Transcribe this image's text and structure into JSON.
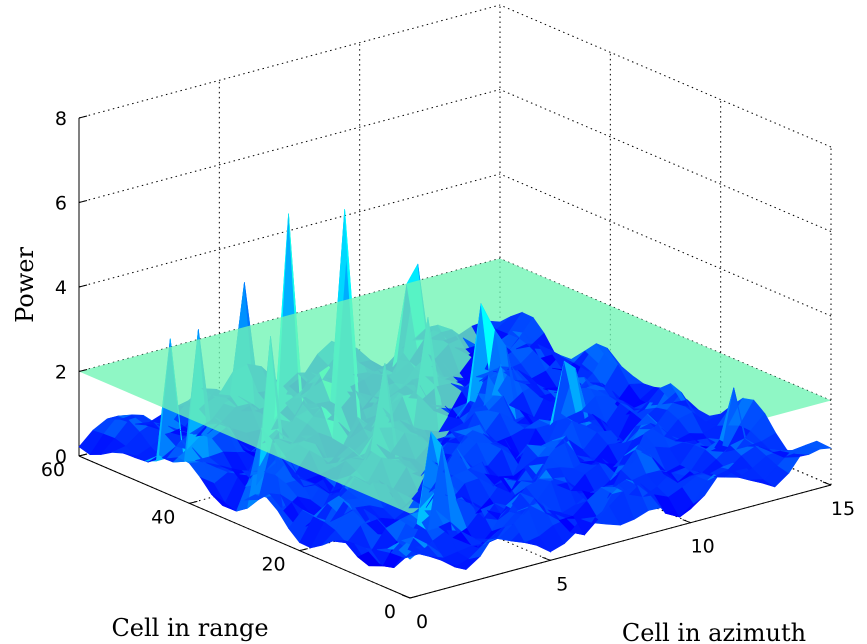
{
  "chart_data": {
    "type": "surface3d",
    "xlabel": "Cell in azimuth",
    "ylabel": "Cell in range",
    "zlabel": "Power",
    "xlim": [
      0,
      15
    ],
    "ylim": [
      0,
      60
    ],
    "zlim": [
      0,
      8
    ],
    "xticks": [
      "0",
      "5",
      "10",
      "15"
    ],
    "yticks": [
      "0",
      "20",
      "40",
      "60"
    ],
    "zticks": [
      "0",
      "2",
      "4",
      "6",
      "8"
    ],
    "grid": true,
    "colormap": "jet",
    "threshold_plane": {
      "z": 2,
      "color": "#70f5b5"
    },
    "surface_base_level": 0.6,
    "peaks": [
      {
        "x": 0.5,
        "y": 46,
        "z": 3.3
      },
      {
        "x": 1.5,
        "y": 46,
        "z": 3.7
      },
      {
        "x": 2.5,
        "y": 38,
        "z": 3.6
      },
      {
        "x": 1.0,
        "y": 31,
        "z": 3.0
      },
      {
        "x": 3.5,
        "y": 13,
        "z": 3.7
      },
      {
        "x": 5.5,
        "y": 50,
        "z": 5.2
      },
      {
        "x": 6.0,
        "y": 42,
        "z": 4.6
      },
      {
        "x": 5.5,
        "y": 58,
        "z": 3.3
      },
      {
        "x": 7.5,
        "y": 50,
        "z": 5.0
      },
      {
        "x": 5.0,
        "y": 30,
        "z": 2.6
      },
      {
        "x": 10.5,
        "y": 53,
        "z": 4.5
      },
      {
        "x": 10.5,
        "y": 37,
        "z": 3.6
      },
      {
        "x": 10.0,
        "y": 38,
        "z": 3.1
      },
      {
        "x": 8.5,
        "y": 40,
        "z": 2.7
      },
      {
        "x": 11.0,
        "y": 27,
        "z": 2.5
      },
      {
        "x": 13.5,
        "y": 10,
        "z": 1.9
      }
    ]
  }
}
